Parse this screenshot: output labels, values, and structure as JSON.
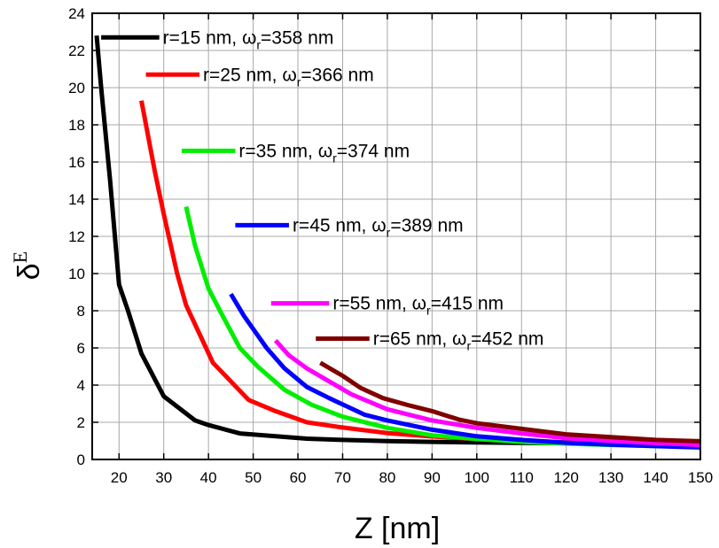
{
  "chart_data": {
    "type": "line",
    "xlabel": "Z [nm]",
    "ylabel_symbol": "δ",
    "ylabel_sup": "E",
    "xlim": [
      14,
      150
    ],
    "ylim": [
      0,
      24
    ],
    "x_ticks": [
      20,
      30,
      40,
      50,
      60,
      70,
      80,
      90,
      100,
      110,
      120,
      130,
      140,
      150
    ],
    "y_ticks": [
      0,
      2,
      4,
      6,
      8,
      10,
      12,
      14,
      16,
      18,
      20,
      22,
      24
    ],
    "grid": true,
    "legend_placement": "inline-staggered",
    "series": [
      {
        "label_prefix": "r=15 nm, ",
        "label_omega": "ω",
        "label_sub": "r",
        "label_suffix": "=358 nm",
        "color": "#000000",
        "legend_x": [
          16,
          29
        ],
        "legend_y": 22.7,
        "x": [
          15,
          16,
          18,
          20,
          22,
          25,
          30,
          37,
          40,
          47,
          55,
          62,
          70,
          80,
          90,
          100,
          110,
          120,
          130,
          140,
          150
        ],
        "y": [
          22.8,
          20.0,
          15.0,
          9.4,
          8.0,
          5.7,
          3.4,
          2.1,
          1.85,
          1.4,
          1.25,
          1.12,
          1.05,
          0.99,
          0.95,
          0.92,
          0.89,
          0.87,
          0.85,
          0.83,
          0.8
        ]
      },
      {
        "label_prefix": "r=25 nm, ",
        "label_omega": "ω",
        "label_sub": "r",
        "label_suffix": "=366 nm",
        "color": "#ff0000",
        "legend_x": [
          26,
          38
        ],
        "legend_y": 20.7,
        "x": [
          25,
          28,
          30,
          33,
          35,
          41,
          45,
          49,
          55,
          62,
          70,
          80,
          90,
          100,
          110,
          120,
          130,
          140,
          150
        ],
        "y": [
          19.3,
          15.5,
          13.2,
          10.0,
          8.3,
          5.2,
          4.2,
          3.2,
          2.6,
          2.0,
          1.72,
          1.42,
          1.24,
          1.1,
          1.0,
          0.92,
          0.85,
          0.8,
          0.75
        ]
      },
      {
        "label_prefix": "r=35 nm, ",
        "label_omega": "ω",
        "label_sub": "r",
        "label_suffix": "=374 nm",
        "color": "#00ee00",
        "legend_x": [
          34,
          46
        ],
        "legend_y": 16.6,
        "x": [
          35,
          37,
          40,
          43,
          47,
          51,
          57,
          63,
          70,
          80,
          90,
          100,
          110,
          120,
          130,
          140,
          150
        ],
        "y": [
          13.6,
          11.5,
          9.2,
          7.8,
          6.0,
          5.0,
          3.75,
          2.95,
          2.3,
          1.7,
          1.3,
          1.1,
          0.95,
          0.85,
          0.78,
          0.72,
          0.68
        ]
      },
      {
        "label_prefix": "r=45 nm, ",
        "label_omega": "ω",
        "label_sub": "r",
        "label_suffix": "=389 nm",
        "color": "#0000ff",
        "legend_x": [
          46,
          58
        ],
        "legend_y": 12.6,
        "x": [
          45,
          48,
          53,
          57,
          62,
          67,
          75,
          80,
          90,
          100,
          110,
          120,
          130,
          140,
          150
        ],
        "y": [
          8.9,
          7.7,
          6.0,
          4.9,
          3.9,
          3.3,
          2.4,
          2.1,
          1.6,
          1.25,
          1.05,
          0.9,
          0.8,
          0.72,
          0.65
        ]
      },
      {
        "label_prefix": "r=55 nm, ",
        "label_omega": "ω",
        "label_sub": "r",
        "label_suffix": "=415 nm",
        "color": "#ff00ff",
        "legend_x": [
          54,
          67
        ],
        "legend_y": 8.4,
        "x": [
          55,
          58,
          62,
          67,
          72,
          80,
          90,
          100,
          110,
          120,
          130,
          140,
          150
        ],
        "y": [
          6.4,
          5.6,
          4.9,
          4.2,
          3.5,
          2.7,
          2.1,
          1.7,
          1.4,
          1.15,
          1.0,
          0.88,
          0.78
        ]
      },
      {
        "label_prefix": "r=65 nm, ",
        "label_omega": "ω",
        "label_sub": "r",
        "label_suffix": "=452 nm",
        "color": "#800000",
        "legend_x": [
          64,
          76
        ],
        "legend_y": 6.5,
        "x": [
          65,
          70,
          74,
          79,
          85,
          90,
          96,
          100,
          110,
          120,
          130,
          140,
          150
        ],
        "y": [
          5.2,
          4.5,
          3.85,
          3.3,
          2.9,
          2.6,
          2.15,
          1.95,
          1.65,
          1.35,
          1.2,
          1.05,
          0.98
        ]
      }
    ]
  }
}
